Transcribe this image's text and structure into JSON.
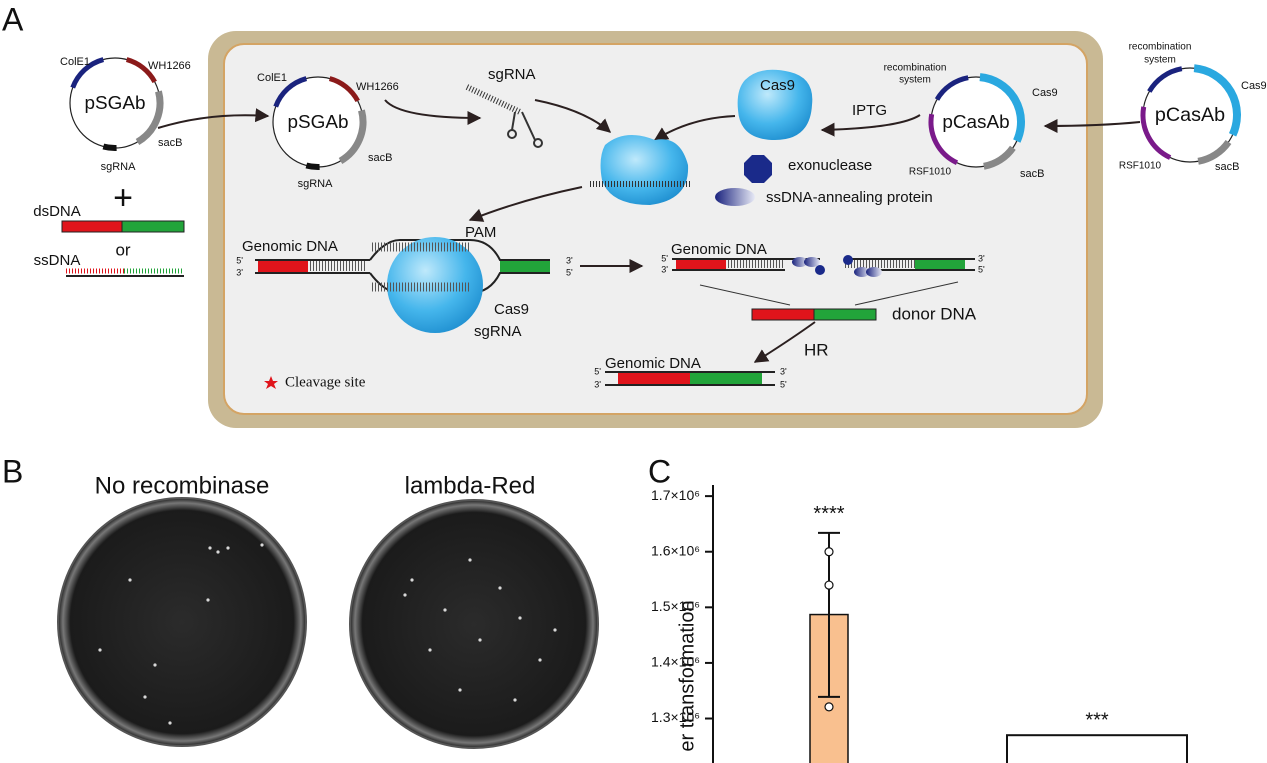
{
  "panel_a": {
    "label": "A",
    "plasmids": [
      {
        "name": "pSGAb",
        "features": [
          "ColE1",
          "WH1266",
          "sacB",
          "sgRNA"
        ]
      },
      {
        "name": "pSGAb",
        "features": [
          "ColE1",
          "WH1266",
          "sacB",
          "sgRNA"
        ]
      },
      {
        "name": "pCasAb",
        "features": [
          "recombination",
          "system",
          "Cas9",
          "RSF1010",
          "sacB"
        ]
      },
      {
        "name": "pCasAb",
        "features": [
          "recombination",
          "system",
          "Cas9",
          "RSF1010",
          "sacB"
        ]
      }
    ],
    "donor": {
      "dsdna": "dsDNA",
      "plus": "+",
      "or": "or",
      "ssdna": "ssDNA"
    },
    "sgrna": "sgRNA",
    "cas9": "Cas9",
    "iptg": "IPTG",
    "exonuclease": "exonuclease",
    "annealing_protein": "ssDNA-annealing protein",
    "cleavage": {
      "genomic_dna": "Genomic DNA",
      "pam": "PAM",
      "cas9": "Cas9",
      "sgrna": "sgRNA",
      "ends": [
        "5'",
        "3'",
        "3'",
        "5'"
      ]
    },
    "resection": {
      "genomic_dna": "Genomic DNA",
      "ends": [
        "5'",
        "3'",
        "3'",
        "5'"
      ]
    },
    "donor_dna": "donor DNA",
    "hr": "HR",
    "product": {
      "genomic_dna": "Genomic DNA",
      "ends": [
        "5'",
        "3'",
        "3'",
        "5'"
      ]
    },
    "legend": "Cleavage site"
  },
  "panel_b": {
    "label": "B",
    "plates": [
      "No recombinase",
      "lambda-Red"
    ]
  },
  "panel_c": {
    "label": "C",
    "y_label": "er transformation",
    "ylim": [
      1220000,
      1720000
    ],
    "yticks": [
      {
        "value": 1300000,
        "label": "1.3×10⁶"
      },
      {
        "value": 1400000,
        "label": "1.4×10⁶"
      },
      {
        "value": 1500000,
        "label": "1.5×10⁶"
      },
      {
        "value": 1600000,
        "label": "1.6×10⁶"
      },
      {
        "value": 1700000,
        "label": "1.7×10⁶"
      }
    ],
    "bars": [
      {
        "value": 1487000,
        "color": "#f9c08f",
        "error_low": 1339000,
        "error_high": 1634000,
        "points": [
          1600000,
          1540000,
          1321000
        ],
        "annotation": "****"
      },
      {
        "value": 1270000,
        "color": "#ffffff",
        "annotation": "***"
      }
    ]
  }
}
